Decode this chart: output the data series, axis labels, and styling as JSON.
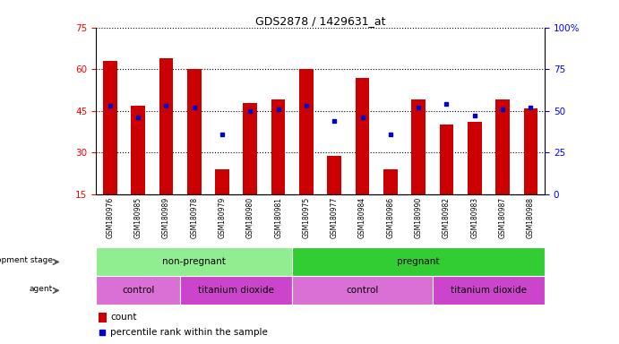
{
  "title": "GDS2878 / 1429631_at",
  "samples": [
    "GSM180976",
    "GSM180985",
    "GSM180989",
    "GSM180978",
    "GSM180979",
    "GSM180980",
    "GSM180981",
    "GSM180975",
    "GSM180977",
    "GSM180984",
    "GSM180986",
    "GSM180990",
    "GSM180982",
    "GSM180983",
    "GSM180987",
    "GSM180988"
  ],
  "counts": [
    63,
    47,
    64,
    60,
    24,
    48,
    49,
    60,
    29,
    57,
    24,
    49,
    40,
    41,
    49,
    46
  ],
  "percentiles": [
    53,
    46,
    53,
    52,
    36,
    50,
    51,
    53,
    44,
    46,
    36,
    52,
    54,
    47,
    51,
    52
  ],
  "ylim_left": [
    15,
    75
  ],
  "ylim_right": [
    0,
    100
  ],
  "yticks_left": [
    15,
    30,
    45,
    60,
    75
  ],
  "yticks_right": [
    0,
    25,
    50,
    75,
    100
  ],
  "bar_color": "#cc0000",
  "dot_color": "#0000cc",
  "dev_stage_color_nonpregnant": "#90ee90",
  "dev_stage_color_pregnant": "#32cd32",
  "agent_color_control": "#da70d6",
  "agent_color_tio2": "#cc44cc",
  "nonpregnant_count": 7,
  "pregnant_count": 9,
  "agent_control1_count": 3,
  "agent_tio2_1_count": 4,
  "agent_control2_count": 5,
  "agent_tio2_2_count": 4,
  "legend_count_label": "count",
  "legend_pct_label": "percentile rank within the sample"
}
